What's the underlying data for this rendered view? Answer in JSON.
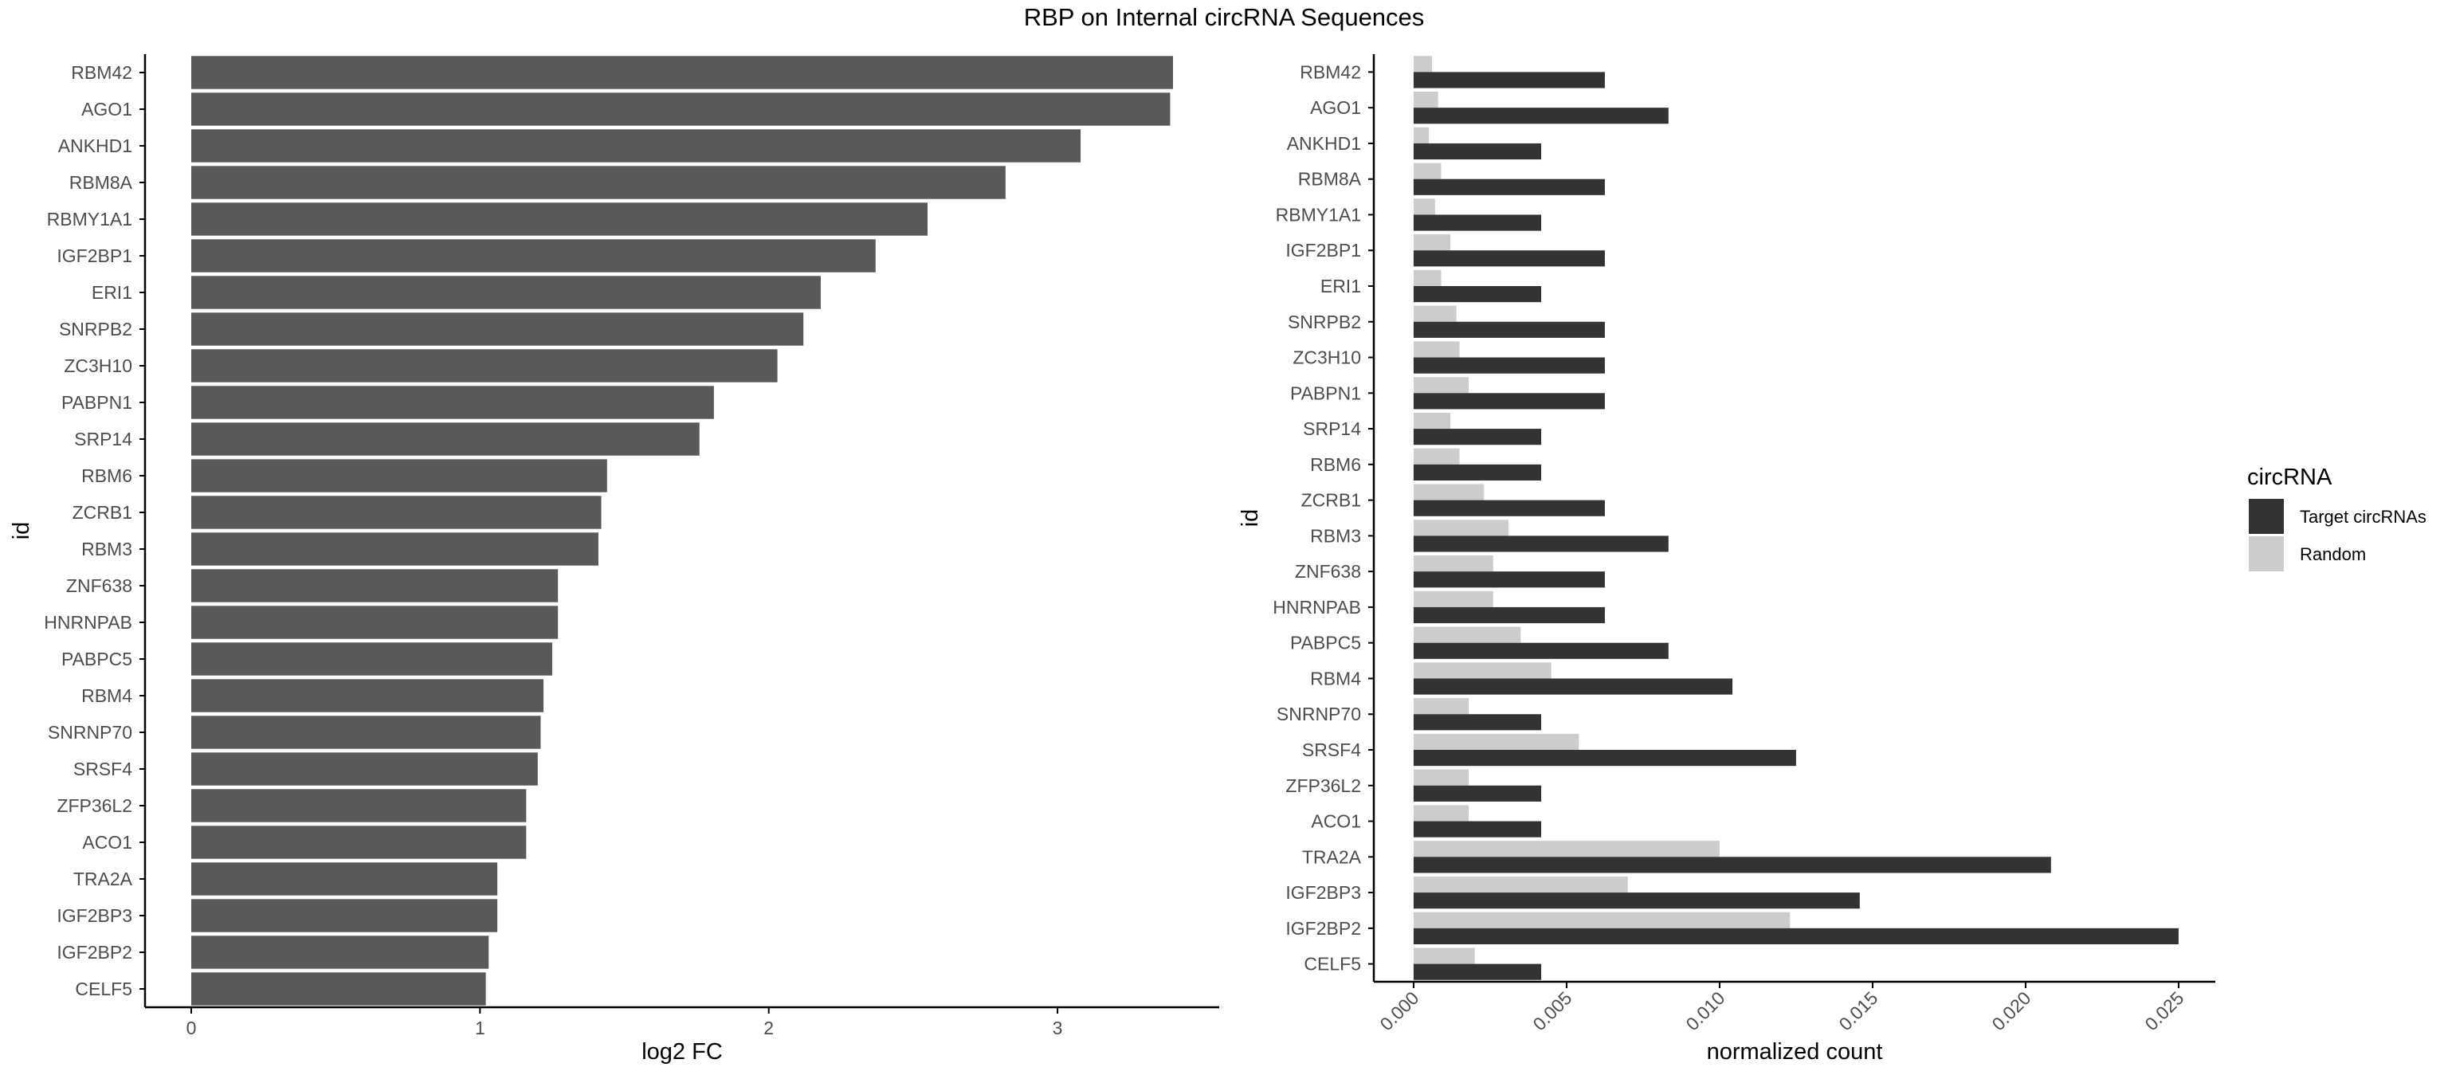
{
  "title": "RBP on Internal circRNA Sequences",
  "colors": {
    "left_bar": "#595959",
    "target": "#333333",
    "random": "#cccccc",
    "axis": "#000000"
  },
  "chart_data": [
    {
      "type": "bar",
      "orientation": "horizontal",
      "xlabel": "log2 FC",
      "ylabel": "id",
      "xlim": [
        -0.16,
        3.56
      ],
      "xticks": [
        0,
        1,
        2,
        3
      ],
      "categories": [
        "RBM42",
        "AGO1",
        "ANKHD1",
        "RBM8A",
        "RBMY1A1",
        "IGF2BP1",
        "ERI1",
        "SNRPB2",
        "ZC3H10",
        "PABPN1",
        "SRP14",
        "RBM6",
        "ZCRB1",
        "RBM3",
        "ZNF638",
        "HNRNPAB",
        "PABPC5",
        "RBM4",
        "SNRNP70",
        "SRSF4",
        "ZFP36L2",
        "ACO1",
        "TRA2A",
        "IGF2BP3",
        "IGF2BP2",
        "CELF5"
      ],
      "values": [
        3.4,
        3.39,
        3.08,
        2.82,
        2.55,
        2.37,
        2.18,
        2.12,
        2.03,
        1.81,
        1.76,
        1.44,
        1.42,
        1.41,
        1.27,
        1.27,
        1.25,
        1.22,
        1.21,
        1.2,
        1.16,
        1.16,
        1.06,
        1.06,
        1.03,
        1.02
      ]
    },
    {
      "type": "bar",
      "orientation": "horizontal",
      "xlabel": "normalized count",
      "ylabel": "id",
      "xlim": [
        -0.0013,
        0.0262
      ],
      "xticks": [
        0.0,
        0.005,
        0.01,
        0.015,
        0.02,
        0.025
      ],
      "xtick_labels": [
        "0.000",
        "0.005",
        "0.010",
        "0.015",
        "0.020",
        "0.025"
      ],
      "categories": [
        "RBM42",
        "AGO1",
        "ANKHD1",
        "RBM8A",
        "RBMY1A1",
        "IGF2BP1",
        "ERI1",
        "SNRPB2",
        "ZC3H10",
        "PABPN1",
        "SRP14",
        "RBM6",
        "ZCRB1",
        "RBM3",
        "ZNF638",
        "HNRNPAB",
        "PABPC5",
        "RBM4",
        "SNRNP70",
        "SRSF4",
        "ZFP36L2",
        "ACO1",
        "TRA2A",
        "IGF2BP3",
        "IGF2BP2",
        "CELF5"
      ],
      "series": [
        {
          "name": "Target circRNAs",
          "color": "#333333",
          "values": [
            0.00625,
            0.00833,
            0.00417,
            0.00625,
            0.00417,
            0.00625,
            0.00417,
            0.00625,
            0.00625,
            0.00625,
            0.00417,
            0.00417,
            0.00625,
            0.00833,
            0.00625,
            0.00625,
            0.00833,
            0.01042,
            0.00417,
            0.0125,
            0.00417,
            0.00417,
            0.02083,
            0.01458,
            0.025,
            0.00417
          ]
        },
        {
          "name": "Random",
          "color": "#cccccc",
          "values": [
            0.0006,
            0.0008,
            0.0005,
            0.0009,
            0.0007,
            0.0012,
            0.0009,
            0.0014,
            0.0015,
            0.0018,
            0.0012,
            0.0015,
            0.0023,
            0.0031,
            0.0026,
            0.0026,
            0.0035,
            0.0045,
            0.0018,
            0.0054,
            0.0018,
            0.0018,
            0.01,
            0.007,
            0.0123,
            0.002
          ]
        }
      ],
      "legend": {
        "title": "circRNA",
        "position": "right"
      }
    }
  ]
}
